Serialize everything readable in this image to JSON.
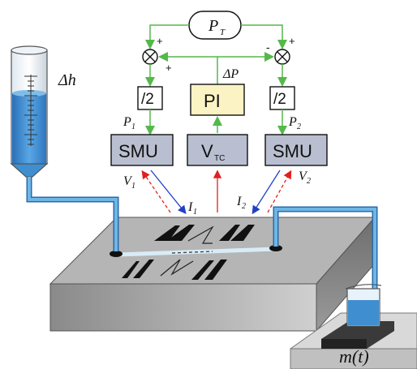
{
  "labels": {
    "pt": "P",
    "pt_sub": "T",
    "delta_p": "ΔP",
    "pi": "PI",
    "half_left": "/2",
    "half_right": "/2",
    "p1": "P",
    "p1_sub": "1",
    "p2": "P",
    "p2_sub": "2",
    "smu_left": "SMU",
    "smu_right": "SMU",
    "vtc": "V",
    "vtc_sub": "TC",
    "v1": "V",
    "v1_sub": "1",
    "v2": "V",
    "v2_sub": "2",
    "i1": "I",
    "i1_sub": "1",
    "i2": "I",
    "i2_sub": "2",
    "delta_h": "Δh",
    "mass": "m(t)",
    "plus_a": "+",
    "plus_b": "+",
    "plus_c": "+",
    "minus": "-"
  },
  "colors": {
    "green_line": "#55b84a",
    "water": "#3f8fd0",
    "pi_fill": "#fbf3c4",
    "smu_fill": "#b9bfd0",
    "block_top": "#b5b5b5",
    "red_arrow": "#e02020",
    "blue_arrow": "#2040c8"
  }
}
